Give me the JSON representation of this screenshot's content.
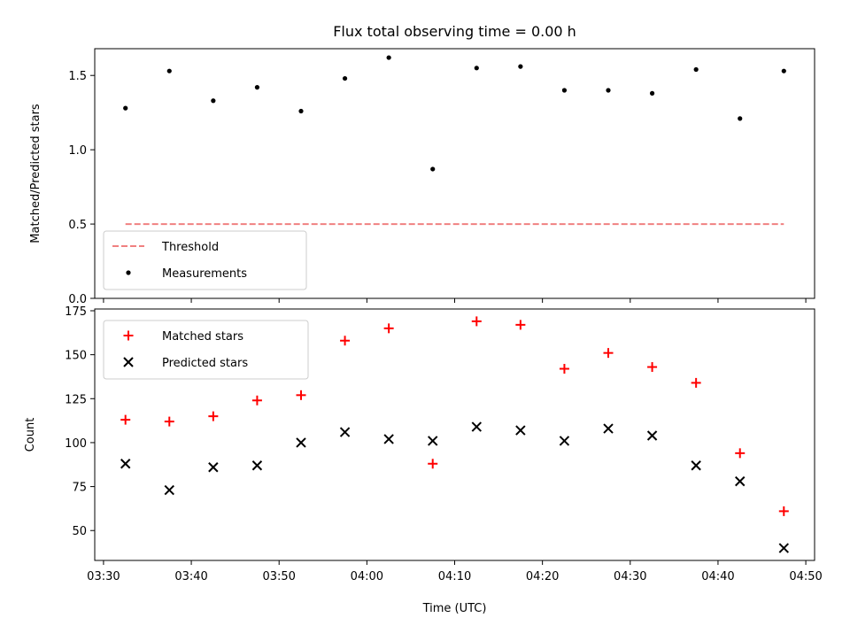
{
  "chart_data": [
    {
      "type": "scatter",
      "title": "Flux total observing time = 0.00 h",
      "xlabel": "",
      "ylabel": "Matched/Predicted stars",
      "ylim": [
        0,
        1.68
      ],
      "yticks": [
        0,
        0.5,
        1.0,
        1.5
      ],
      "ytick_labels": [
        "0.0",
        "0.5",
        "1.0",
        "1.5"
      ],
      "xlim": [
        "03:29",
        "04:51"
      ],
      "xticks": [
        "03:30",
        "03:40",
        "03:50",
        "04:00",
        "04:10",
        "04:20",
        "04:30",
        "04:40",
        "04:50"
      ],
      "xtick_labels_visible": false,
      "legend": "lower-left",
      "threshold": {
        "name": "Threshold",
        "value": 0.5,
        "x_start": "03:32:30",
        "x_end": "04:47:30",
        "color": "#f08080",
        "style": "dashed"
      },
      "series": [
        {
          "name": "Measurements",
          "marker": "dot",
          "color": "#000000",
          "x": [
            "03:32:30",
            "03:37:30",
            "03:42:30",
            "03:47:30",
            "03:52:30",
            "03:57:30",
            "04:02:30",
            "04:07:30",
            "04:12:30",
            "04:17:30",
            "04:22:30",
            "04:27:30",
            "04:32:30",
            "04:37:30",
            "04:42:30",
            "04:47:30"
          ],
          "y": [
            1.28,
            1.53,
            1.33,
            1.42,
            1.26,
            1.48,
            1.62,
            0.87,
            1.55,
            1.56,
            1.4,
            1.4,
            1.38,
            1.54,
            1.21,
            1.53
          ]
        }
      ]
    },
    {
      "type": "scatter",
      "title": "",
      "xlabel": "Time (UTC)",
      "ylabel": "Count",
      "ylim": [
        33,
        176
      ],
      "yticks": [
        50,
        75,
        100,
        125,
        150,
        175
      ],
      "ytick_labels": [
        "50",
        "75",
        "100",
        "125",
        "150",
        "175"
      ],
      "xlim": [
        "03:29",
        "04:51"
      ],
      "xticks": [
        "03:30",
        "03:40",
        "03:50",
        "04:00",
        "04:10",
        "04:20",
        "04:30",
        "04:40",
        "04:50"
      ],
      "xtick_labels": [
        "03:30",
        "03:40",
        "03:50",
        "04:00",
        "04:10",
        "04:20",
        "04:30",
        "04:40",
        "04:50"
      ],
      "legend": "upper-left",
      "series": [
        {
          "name": "Matched stars",
          "marker": "plus",
          "color": "#ff0000",
          "x": [
            "03:32:30",
            "03:37:30",
            "03:42:30",
            "03:47:30",
            "03:52:30",
            "03:57:30",
            "04:02:30",
            "04:07:30",
            "04:12:30",
            "04:17:30",
            "04:22:30",
            "04:27:30",
            "04:32:30",
            "04:37:30",
            "04:42:30",
            "04:47:30"
          ],
          "y": [
            113,
            112,
            115,
            124,
            127,
            158,
            165,
            88,
            169,
            167,
            142,
            151,
            143,
            134,
            94,
            61
          ]
        },
        {
          "name": "Predicted stars",
          "marker": "x",
          "color": "#000000",
          "x": [
            "03:32:30",
            "03:37:30",
            "03:42:30",
            "03:47:30",
            "03:52:30",
            "03:57:30",
            "04:02:30",
            "04:07:30",
            "04:12:30",
            "04:17:30",
            "04:22:30",
            "04:27:30",
            "04:32:30",
            "04:37:30",
            "04:42:30",
            "04:47:30"
          ],
          "y": [
            88,
            73,
            86,
            87,
            100,
            106,
            102,
            101,
            109,
            107,
            101,
            108,
            104,
            87,
            78,
            40
          ]
        }
      ]
    }
  ]
}
